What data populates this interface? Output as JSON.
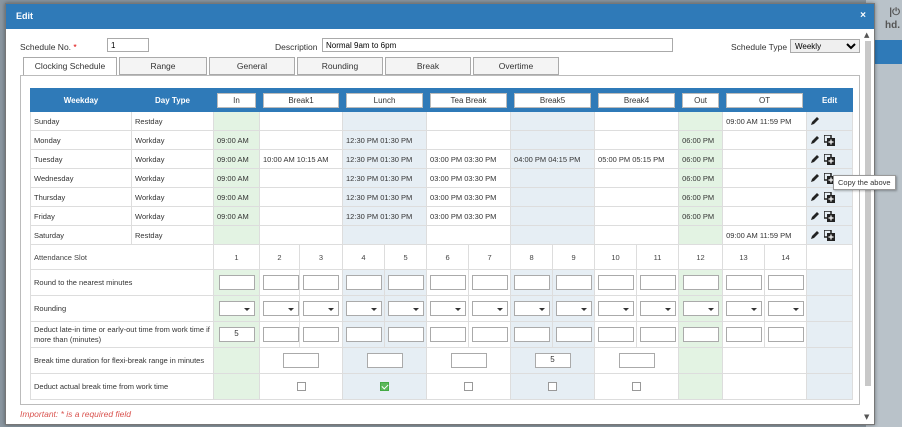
{
  "background": {
    "text_lines": [
      "|⏻",
      "hd."
    ]
  },
  "modal": {
    "title": "Edit",
    "close": "×"
  },
  "form": {
    "schedule_no_label": "Schedule No.",
    "required_mark": "*",
    "schedule_no_value": "1",
    "description_label": "Description",
    "description_value": "Normal 9am to 6pm",
    "schedule_type_label": "Schedule Type",
    "schedule_type_value": "Weekly"
  },
  "tabs": [
    "Clocking Schedule",
    "Range",
    "General",
    "Rounding",
    "Break",
    "Overtime"
  ],
  "table": {
    "headers": {
      "weekday": "Weekday",
      "daytype": "Day Type",
      "in": "In",
      "break1": "Break1",
      "lunch": "Lunch",
      "teabreak": "Tea Break",
      "break5": "Break5",
      "break4": "Break4",
      "out": "Out",
      "ot": "OT",
      "edit": "Edit"
    },
    "rows": [
      {
        "weekday": "Sunday",
        "daytype": "Restday",
        "in": "",
        "break1": "",
        "lunch": "",
        "tea": "",
        "break5": "",
        "break4": "",
        "out": "",
        "ot": "09:00 AM 11:59 PM"
      },
      {
        "weekday": "Monday",
        "daytype": "Workday",
        "in": "09:00 AM",
        "break1": "",
        "lunch": "12:30 PM 01:30 PM",
        "tea": "",
        "break5": "",
        "break4": "",
        "out": "06:00 PM",
        "ot": ""
      },
      {
        "weekday": "Tuesday",
        "daytype": "Workday",
        "in": "09:00 AM",
        "break1": "10:00 AM 10:15 AM",
        "lunch": "12:30 PM 01:30 PM",
        "tea": "03:00 PM 03:30 PM",
        "break5": "04:00 PM 04:15 PM",
        "break4": "05:00 PM 05:15 PM",
        "out": "06:00 PM",
        "ot": ""
      },
      {
        "weekday": "Wednesday",
        "daytype": "Workday",
        "in": "09:00 AM",
        "break1": "",
        "lunch": "12:30 PM 01:30 PM",
        "tea": "03:00 PM 03:30 PM",
        "break5": "",
        "break4": "",
        "out": "06:00 PM",
        "ot": ""
      },
      {
        "weekday": "Thursday",
        "daytype": "Workday",
        "in": "09:00 AM",
        "break1": "",
        "lunch": "12:30 PM 01:30 PM",
        "tea": "03:00 PM 03:30 PM",
        "break5": "",
        "break4": "",
        "out": "06:00 PM",
        "ot": ""
      },
      {
        "weekday": "Friday",
        "daytype": "Workday",
        "in": "09:00 AM",
        "break1": "",
        "lunch": "12:30 PM 01:30 PM",
        "tea": "03:00 PM 03:30 PM",
        "break5": "",
        "break4": "",
        "out": "06:00 PM",
        "ot": ""
      },
      {
        "weekday": "Saturday",
        "daytype": "Restday",
        "in": "",
        "break1": "",
        "lunch": "",
        "tea": "",
        "break5": "",
        "break4": "",
        "out": "",
        "ot": "09:00 AM 11:59 PM"
      }
    ],
    "slot_label": "Attendance Slot",
    "slots": [
      "1",
      "2",
      "3",
      "4",
      "5",
      "6",
      "7",
      "8",
      "9",
      "10",
      "11",
      "12",
      "13",
      "14"
    ],
    "round_label": "Round to the nearest minutes",
    "rounding_label": "Rounding",
    "deduct_label": "Deduct late-in time or early-out time from work time if more than (minutes)",
    "deduct_value": "5",
    "flexi_label": "Break time duration for flexi-break range in minutes",
    "flexi_break5_value": "5",
    "deduct_break_label": "Deduct actual break time from work time",
    "deduct_break_checked": {
      "break1": false,
      "lunch": true,
      "tea": false,
      "break5": false,
      "break4": false
    }
  },
  "tooltip": "Copy the above",
  "footer": "Important: * is a required field",
  "colors": {
    "header": "#2f7ab8",
    "in_out_column": "#e3f3e3",
    "break_column": "#e6eef4",
    "required": "#d9534f"
  },
  "icons": [
    "pencil-icon",
    "copy-icon",
    "close-icon"
  ]
}
